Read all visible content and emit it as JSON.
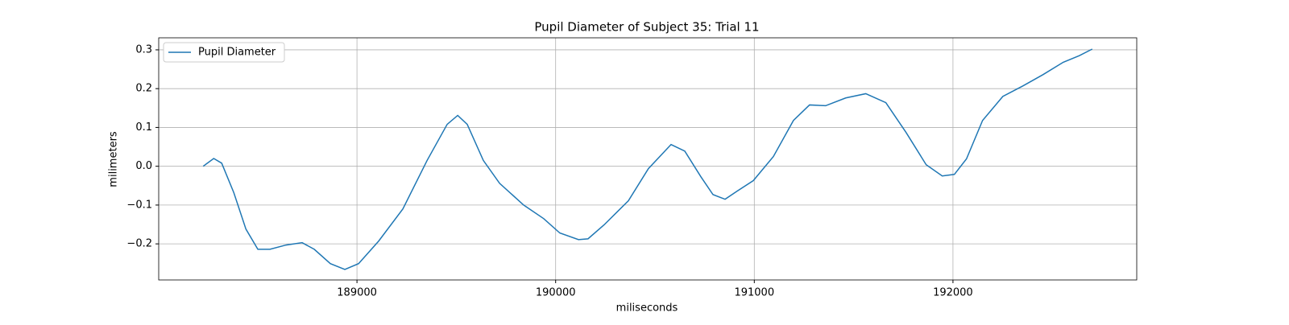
{
  "chart_data": {
    "type": "line",
    "title": "Pupil Diameter of Subject 35: Trial 11",
    "x_label": "miliseconds",
    "y_label": "milimeters",
    "x": [
      188226,
      188279,
      188319,
      188380,
      188441,
      188501,
      188562,
      188643,
      188724,
      188785,
      188866,
      188939,
      189008,
      189109,
      189231,
      189353,
      189454,
      189507,
      189555,
      189636,
      189718,
      189839,
      189940,
      190021,
      190115,
      190163,
      190244,
      190366,
      190467,
      190581,
      190650,
      190731,
      190792,
      190853,
      190914,
      190995,
      191096,
      191197,
      191278,
      191359,
      191460,
      191561,
      191662,
      191764,
      191865,
      191946,
      192007,
      192068,
      192149,
      192251,
      192352,
      192453,
      192555,
      192636,
      192701
    ],
    "series": [
      {
        "name": "Pupil Diameter",
        "color": "#1f77b4",
        "values": [
          0.0,
          0.02,
          0.008,
          -0.068,
          -0.162,
          -0.214,
          -0.214,
          -0.203,
          -0.197,
          -0.214,
          -0.251,
          -0.266,
          -0.251,
          -0.193,
          -0.11,
          0.015,
          0.108,
          0.131,
          0.108,
          0.015,
          -0.044,
          -0.1,
          -0.135,
          -0.172,
          -0.189,
          -0.187,
          -0.151,
          -0.089,
          -0.006,
          0.056,
          0.039,
          -0.027,
          -0.073,
          -0.085,
          -0.064,
          -0.037,
          0.025,
          0.118,
          0.158,
          0.156,
          0.176,
          0.187,
          0.164,
          0.087,
          0.004,
          -0.025,
          -0.021,
          0.019,
          0.118,
          0.18,
          0.207,
          0.236,
          0.268,
          0.285,
          0.302
        ]
      }
    ],
    "xlim": [
      188002,
      192925
    ],
    "ylim": [
      -0.293,
      0.331
    ],
    "xticks": [
      189000,
      190000,
      191000,
      192000
    ],
    "yticks": [
      {
        "value": -0.2,
        "label": "−0.2"
      },
      {
        "value": -0.1,
        "label": "−0.1"
      },
      {
        "value": 0,
        "label": "0.0"
      },
      0.1,
      0.2,
      0.3
    ],
    "grid": true,
    "legend": "upper-left"
  }
}
